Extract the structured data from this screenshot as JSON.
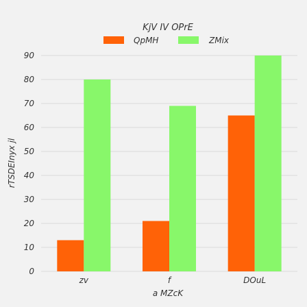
{
  "chart_data": {
    "type": "bar",
    "title": "",
    "legend_title": "KjV IV OPrE",
    "xlabel": "a MZcK",
    "ylabel": "rTSDEInyx jl",
    "categories": [
      "zv",
      "f",
      "DOuL"
    ],
    "series": [
      {
        "name": "QpMH",
        "color": "#ff6207",
        "values": [
          13,
          21,
          65
        ]
      },
      {
        "name": "ZMix",
        "color": "#88f76a",
        "values": [
          80,
          69,
          90
        ]
      }
    ],
    "ylim": [
      0,
      90
    ],
    "yticks": [
      "0",
      "10",
      "20",
      "30",
      "40",
      "50",
      "60",
      "70",
      "80",
      "90"
    ],
    "grid": true,
    "legend_position": "top"
  }
}
